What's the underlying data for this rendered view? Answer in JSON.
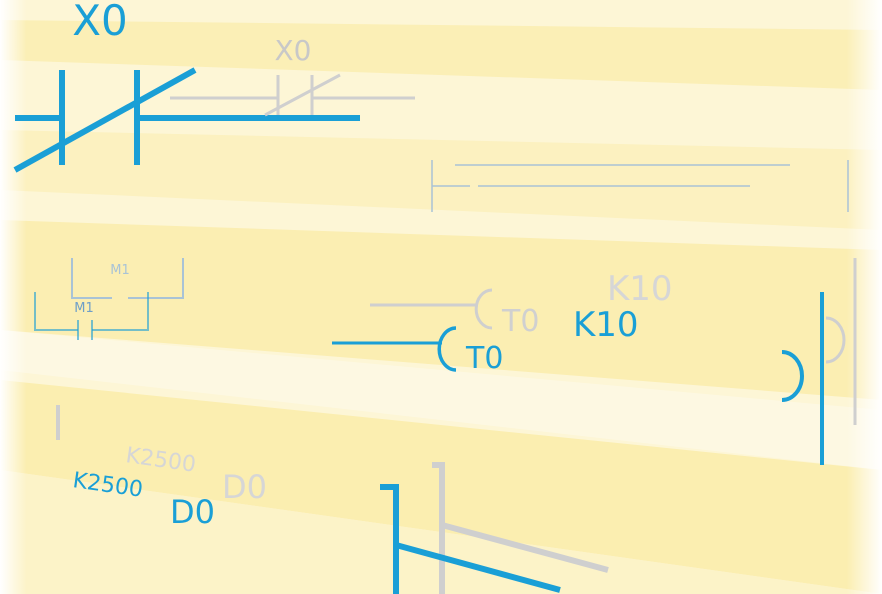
{
  "symbols": {
    "top_contact": "X0",
    "faded_contact": "X0",
    "contact_m1_upper": "M1",
    "contact_m1_lower": "M1",
    "timer_faded": "T0",
    "timer": "T0",
    "constant_faded": "K10",
    "constant": "K10",
    "constant_k2500_faded": "K2500",
    "constant_k2500": "K2500",
    "register_faded": "D0",
    "register": "D0"
  }
}
